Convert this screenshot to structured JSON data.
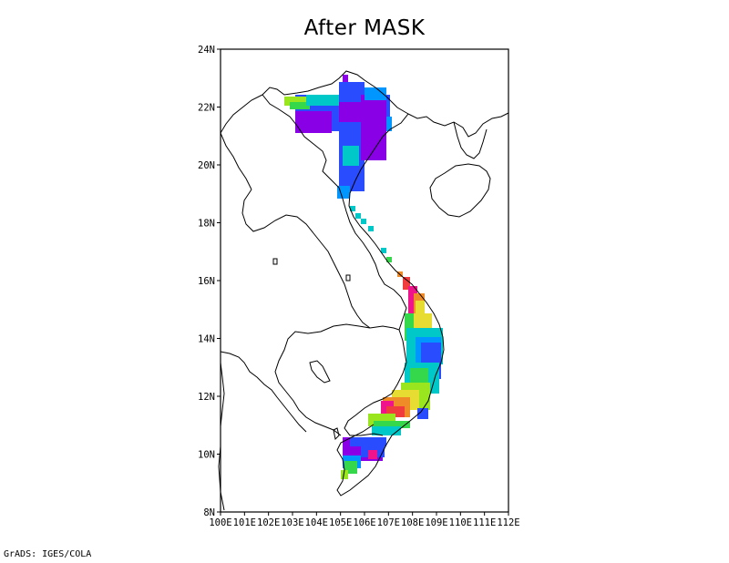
{
  "title": "After MASK",
  "credit": "GrADS: IGES/COLA",
  "map": {
    "lon_range": [
      100,
      112
    ],
    "lat_range": [
      8,
      24
    ],
    "lon_ticks": [
      "100E",
      "101E",
      "102E",
      "103E",
      "104E",
      "105E",
      "106E",
      "107E",
      "108E",
      "109E",
      "110E",
      "111E",
      "112E"
    ],
    "lat_ticks": [
      "8N",
      "10N",
      "12N",
      "14N",
      "16N",
      "18N",
      "20N",
      "22N",
      "24N"
    ]
  },
  "colors": {
    "purple": "#8a00e6",
    "blue": "#2a4cff",
    "sky": "#0096ff",
    "cyan": "#00c8c8",
    "green": "#34d84a",
    "lime": "#9ae61e",
    "yellow": "#e6dc32",
    "orange": "#f08c28",
    "red": "#f03c3c",
    "magenta": "#f0148c"
  }
}
